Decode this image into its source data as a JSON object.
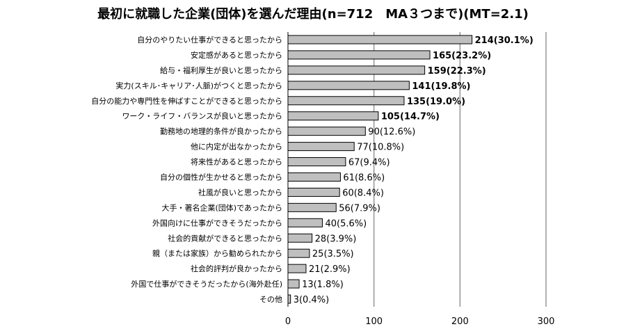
{
  "chart_data": {
    "type": "bar",
    "orientation": "horizontal",
    "title": "最初に就職した企業(団体)を選んだ理由(n=712　MA３つまで)(MT=2.1)",
    "categories": [
      "自分のやりたい仕事ができると思ったから",
      "安定感があると思ったから",
      "給与・福利厚生が良いと思ったから",
      "実力(スキル･キャリア･人脈)がつくと思ったから",
      "自分の能力や専門性を伸ばすことができると思ったから",
      "ワーク・ライフ・バランスが良いと思ったから",
      "勤務地の地理的条件が良かったから",
      "他に内定が出なかったから",
      "将来性があると思ったから",
      "自分の個性が生かせると思ったから",
      "社風が良いと思ったから",
      "大手・著名企業(団体)であったから",
      "外国向けに仕事ができそうだったから",
      "社会的貢献ができると思ったから",
      "親（または家族）から勧められたから",
      "社会的評判が良かったから",
      "外国で仕事ができそうだったから(海外赴任)",
      "その他"
    ],
    "values": [
      214,
      165,
      159,
      141,
      135,
      105,
      90,
      77,
      67,
      61,
      60,
      56,
      40,
      28,
      25,
      21,
      13,
      3
    ],
    "value_labels": [
      "214(30.1%)",
      "165(23.2%)",
      "159(22.3%)",
      "141(19.8%)",
      "135(19.0%)",
      "105(14.7%)",
      "90(12.6%)",
      "77(10.8%)",
      "67(9.4%)",
      "61(8.6%)",
      "60(8.4%)",
      "56(7.9%)",
      "40(5.6%)",
      "28(3.9%)",
      "25(3.5%)",
      "21(2.9%)",
      "13(1.8%)",
      "3(0.4%)"
    ],
    "bold_labels": [
      true,
      true,
      true,
      true,
      true,
      true,
      false,
      false,
      false,
      false,
      false,
      false,
      false,
      false,
      false,
      false,
      false,
      false
    ],
    "xlim": [
      0,
      300
    ],
    "xticks": [
      "0",
      "100",
      "200",
      "300"
    ],
    "xtick_values": [
      0,
      100,
      200,
      300
    ],
    "grid": "vertical at 100 and 200",
    "bar_color": "#bfbfbf",
    "bar_border": "#000000",
    "grid_color": "#7f7f7f"
  }
}
